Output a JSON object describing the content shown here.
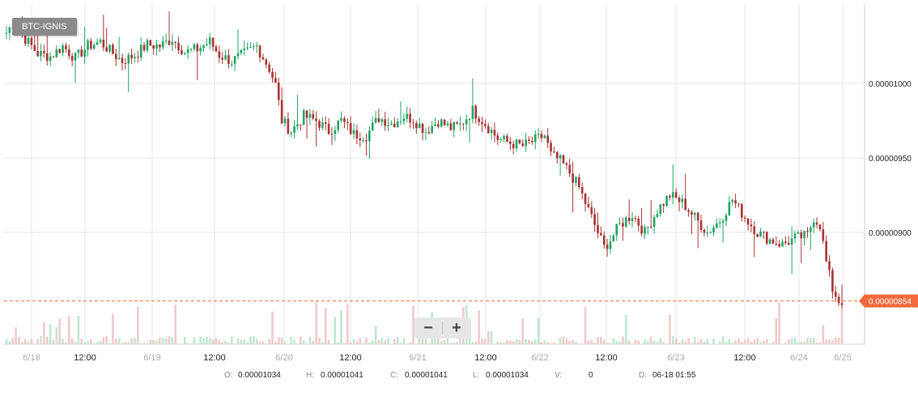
{
  "pair_label": "BTC-IGNIS",
  "colors": {
    "up": "#1fa463",
    "down": "#a83232",
    "up_volume": "#bfe6d3",
    "down_volume": "#efcaca",
    "current_price_line": "#f26a3c",
    "grid": "#e6e6e6"
  },
  "zoom": {
    "minus_label": "−",
    "plus_label": "+"
  },
  "ohlc": {
    "o_label": "O:",
    "o_value": "0.00001034",
    "h_label": "H:",
    "h_value": "0.00001041",
    "c_label": "C:",
    "c_value": "0.00001041",
    "l_label": "L:",
    "l_value": "0.00001034",
    "v_label": "V:",
    "v_value": "0",
    "d_label": "D:",
    "d_value": "06-18 01:55"
  },
  "chart_data": {
    "type": "candlestick",
    "title": "BTC-IGNIS",
    "x_ticks": [
      "6/18",
      "12:00",
      "6/19",
      "12:00",
      "6/20",
      "12:00",
      "6/21",
      "12:00",
      "6/22",
      "12:00",
      "6/23",
      "12:00",
      "6/24",
      "6/25"
    ],
    "y_ticks": [
      "0.00001000",
      "0.00000950",
      "0.00000900"
    ],
    "current_price": "0.00000854",
    "ylim": [
      8.25e-06,
      1.055e-05
    ],
    "grid": true,
    "close_path": [
      [
        0,
        1034
      ],
      [
        2,
        1040
      ],
      [
        5,
        1035
      ],
      [
        6,
        1030
      ],
      [
        10,
        1020
      ],
      [
        14,
        1018
      ],
      [
        18,
        1025
      ],
      [
        22,
        1017
      ],
      [
        26,
        1025
      ],
      [
        30,
        1028
      ],
      [
        33,
        1022
      ],
      [
        37,
        1015
      ],
      [
        41,
        1019
      ],
      [
        45,
        1026
      ],
      [
        49,
        1025
      ],
      [
        53,
        1030
      ],
      [
        57,
        1021
      ],
      [
        61,
        1023
      ],
      [
        65,
        1028
      ],
      [
        68,
        1019
      ],
      [
        72,
        1015
      ],
      [
        76,
        1020
      ],
      [
        80,
        1025
      ],
      [
        84,
        1010
      ],
      [
        86,
        999
      ],
      [
        88,
        975
      ],
      [
        91,
        968
      ],
      [
        95,
        978
      ],
      [
        99,
        975
      ],
      [
        103,
        968
      ],
      [
        107,
        975
      ],
      [
        111,
        966
      ],
      [
        115,
        965
      ],
      [
        119,
        977
      ],
      [
        123,
        973
      ],
      [
        127,
        978
      ],
      [
        130,
        976
      ],
      [
        134,
        968
      ],
      [
        138,
        975
      ],
      [
        142,
        970
      ],
      [
        145,
        972
      ],
      [
        149,
        982
      ],
      [
        153,
        973
      ],
      [
        157,
        963
      ],
      [
        161,
        960
      ],
      [
        165,
        958
      ],
      [
        169,
        962
      ],
      [
        172,
        965
      ],
      [
        174,
        952
      ],
      [
        177,
        948
      ],
      [
        180,
        940
      ],
      [
        183,
        930
      ],
      [
        186,
        915
      ],
      [
        189,
        900
      ],
      [
        191,
        890
      ],
      [
        193,
        895
      ],
      [
        196,
        905
      ],
      [
        200,
        912
      ],
      [
        204,
        900
      ],
      [
        208,
        915
      ],
      [
        212,
        925
      ],
      [
        216,
        920
      ],
      [
        220,
        910
      ],
      [
        224,
        900
      ],
      [
        228,
        908
      ],
      [
        232,
        922
      ],
      [
        236,
        910
      ],
      [
        240,
        900
      ],
      [
        244,
        895
      ],
      [
        248,
        892
      ],
      [
        252,
        896
      ],
      [
        256,
        898
      ],
      [
        258,
        910
      ],
      [
        260,
        905
      ],
      [
        262,
        880
      ],
      [
        264,
        862
      ],
      [
        266,
        854
      ]
    ],
    "time_span_hours": 168
  }
}
